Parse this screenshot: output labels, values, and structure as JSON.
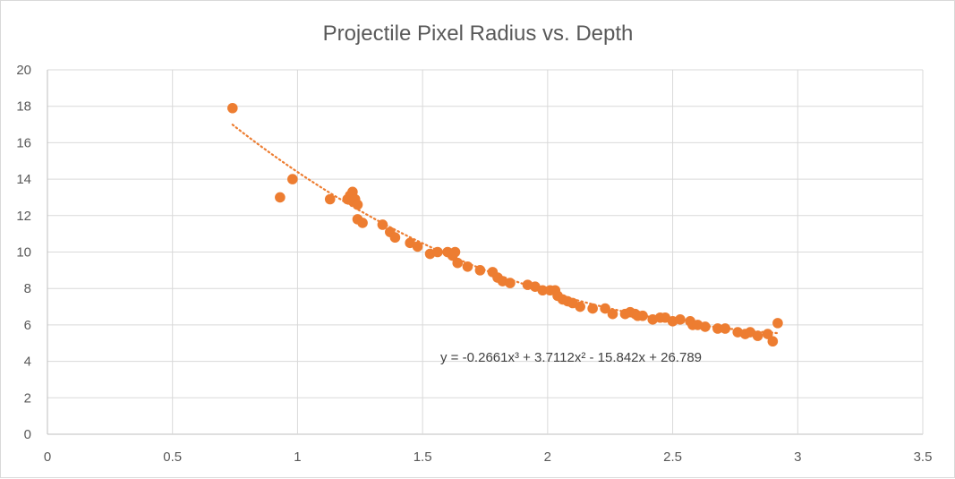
{
  "chart_data": {
    "type": "scatter",
    "title": "Projectile Pixel Radius vs. Depth",
    "xlabel": "",
    "ylabel": "",
    "xlim": [
      0,
      3.5
    ],
    "ylim": [
      0,
      20
    ],
    "x_ticks": [
      "0",
      "0.5",
      "1",
      "1.5",
      "2",
      "2.5",
      "3",
      "3.5"
    ],
    "y_ticks": [
      "0",
      "2",
      "4",
      "6",
      "8",
      "10",
      "12",
      "14",
      "16",
      "18",
      "20"
    ],
    "grid": "major gridlines on",
    "legend": "none",
    "marker_color": "#ED7D31",
    "series": [
      {
        "x": [
          0.74,
          0.93,
          0.98,
          1.13,
          1.2,
          1.21,
          1.22,
          1.22,
          1.23,
          1.24,
          1.24,
          1.26,
          1.34,
          1.37,
          1.39,
          1.45,
          1.48,
          1.53,
          1.56,
          1.6,
          1.62,
          1.63,
          1.64,
          1.68,
          1.73,
          1.78,
          1.8,
          1.82,
          1.85,
          1.92,
          1.95,
          1.98,
          2.01,
          2.03,
          2.04,
          2.06,
          2.08,
          2.1,
          2.13,
          2.18,
          2.23,
          2.26,
          2.31,
          2.33,
          2.35,
          2.36,
          2.38,
          2.42,
          2.45,
          2.47,
          2.5,
          2.53,
          2.57,
          2.58,
          2.6,
          2.63,
          2.68,
          2.71,
          2.76,
          2.79,
          2.81,
          2.84,
          2.88,
          2.9,
          2.92
        ],
        "y": [
          17.9,
          13.0,
          14.0,
          12.9,
          12.9,
          13.1,
          12.8,
          13.3,
          12.9,
          12.6,
          11.8,
          11.6,
          11.5,
          11.1,
          10.8,
          10.5,
          10.3,
          9.9,
          10.0,
          10.0,
          9.8,
          10.0,
          9.4,
          9.2,
          9.0,
          8.9,
          8.6,
          8.4,
          8.3,
          8.2,
          8.1,
          7.9,
          7.9,
          7.9,
          7.6,
          7.4,
          7.3,
          7.2,
          7.0,
          6.9,
          6.9,
          6.6,
          6.6,
          6.7,
          6.6,
          6.5,
          6.5,
          6.3,
          6.4,
          6.4,
          6.2,
          6.3,
          6.2,
          6.0,
          6.0,
          5.9,
          5.8,
          5.8,
          5.6,
          5.5,
          5.6,
          5.4,
          5.5,
          5.1,
          6.1
        ]
      }
    ],
    "trendline": {
      "type": "polynomial",
      "order": 3,
      "coefficients": [
        -0.2661,
        3.7112,
        -15.842,
        26.789
      ],
      "x_range": [
        0.74,
        2.92
      ],
      "style": "dotted",
      "color": "#ED7D31",
      "equation_label": "y = -0.2661x³ + 3.7112x² - 15.842x + 26.789"
    }
  }
}
